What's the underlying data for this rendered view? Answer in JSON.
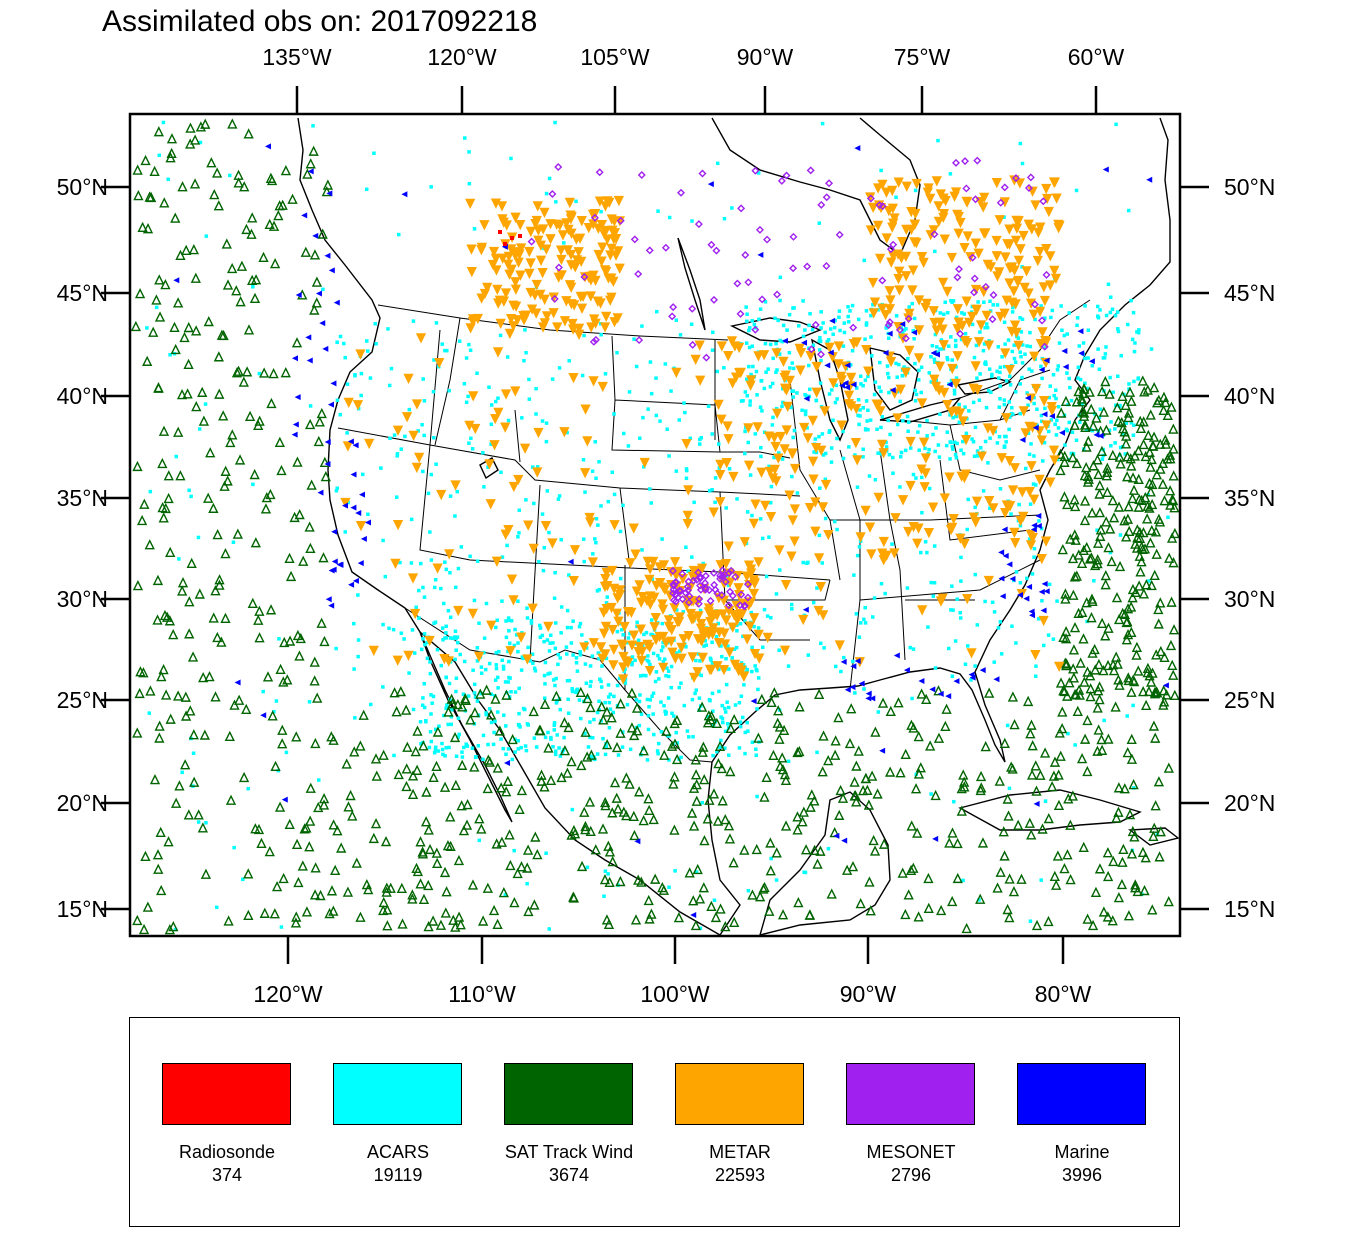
{
  "title": "Assimilated obs on: 2017092218",
  "axes": {
    "top_lon_labels": [
      "135°W",
      "120°W",
      "105°W",
      "90°W",
      "75°W",
      "60°W"
    ],
    "bottom_lon_labels": [
      "120°W",
      "110°W",
      "100°W",
      "90°W",
      "80°W"
    ],
    "lat_labels": [
      "50°N",
      "45°N",
      "40°N",
      "35°N",
      "30°N",
      "25°N",
      "20°N",
      "15°N"
    ]
  },
  "legend": [
    {
      "name": "Radiosonde",
      "count": "374",
      "color": "#ff0000"
    },
    {
      "name": "ACARS",
      "count": "19119",
      "color": "#00ffff"
    },
    {
      "name": "SAT Track Wind",
      "count": "3674",
      "color": "#006400"
    },
    {
      "name": "METAR",
      "count": "22593",
      "color": "#ffa500"
    },
    {
      "name": "MESONET",
      "count": "2796",
      "color": "#a020f0"
    },
    {
      "name": "Marine",
      "count": "3996",
      "color": "#0000ff"
    }
  ],
  "colors": {
    "frame": "#000000",
    "coast": "#000000"
  }
}
